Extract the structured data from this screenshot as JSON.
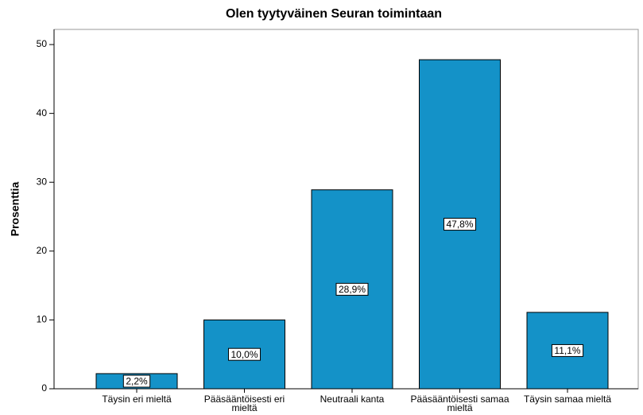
{
  "chart_data": {
    "type": "bar",
    "title": "Olen tyytyväinen Seuran toimintaan",
    "y_label": "Prosenttia",
    "categories": [
      "Täysin eri mieltä",
      "Pääsääntöisesti eri mieltä",
      "Neutraali kanta",
      "Pääsääntöisesti samaa mieltä",
      "Täysin samaa mieltä"
    ],
    "values": [
      2.2,
      10.0,
      28.9,
      47.8,
      11.1
    ],
    "value_labels": [
      "2,2%",
      "10,0%",
      "28,9%",
      "47,8%",
      "11,1%"
    ],
    "color": "#1492c8",
    "ylim": [
      0,
      52.2
    ],
    "yticks": [
      0,
      10,
      20,
      30,
      40,
      50
    ]
  }
}
